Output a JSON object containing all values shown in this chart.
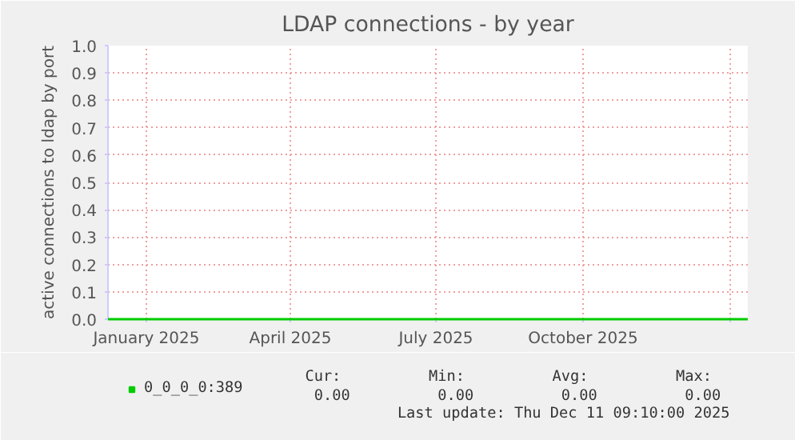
{
  "chart_data": {
    "type": "line",
    "title": "LDAP connections - by year",
    "ylabel": "active connections to ldap by port",
    "x": [
      "2024-12-08",
      "2026-01-12"
    ],
    "series": [
      {
        "name": "0_0_0_0:389",
        "color": "#00cc00",
        "values": [
          0,
          0
        ]
      }
    ],
    "xlim": [
      "2024-12-08",
      "2026-01-12"
    ],
    "xticks": [
      {
        "value": "2025-01",
        "label": "January 2025"
      },
      {
        "value": "2025-04",
        "label": "April 2025"
      },
      {
        "value": "2025-07",
        "label": "July 2025"
      },
      {
        "value": "2025-10",
        "label": "October 2025"
      },
      {
        "value": "2026-01",
        "label": null
      }
    ],
    "ylim": [
      0,
      1
    ],
    "yticks": [
      {
        "value": 0,
        "label": "0.0"
      },
      {
        "value": 0.1,
        "label": "0.1"
      },
      {
        "value": 0.2,
        "label": "0.2"
      },
      {
        "value": 0.3,
        "label": "0.3"
      },
      {
        "value": 0.4,
        "label": "0.4"
      },
      {
        "value": 0.5,
        "label": "0.5"
      },
      {
        "value": 0.6,
        "label": "0.6"
      },
      {
        "value": 0.7,
        "label": "0.7"
      },
      {
        "value": 0.8,
        "label": "0.8"
      },
      {
        "value": 0.9,
        "label": "0.9"
      },
      {
        "value": 1,
        "label": "1.0"
      }
    ],
    "grid": true,
    "legend": "bottom",
    "marker": "none",
    "line_style": "solid",
    "annotations": [
      "Cur:",
      "Min:",
      "Avg:",
      "Max:",
      "0.00",
      "0.00",
      "0.00",
      "0.00",
      "Last update: Thu Dec 11 09:10:00 2025"
    ]
  }
}
